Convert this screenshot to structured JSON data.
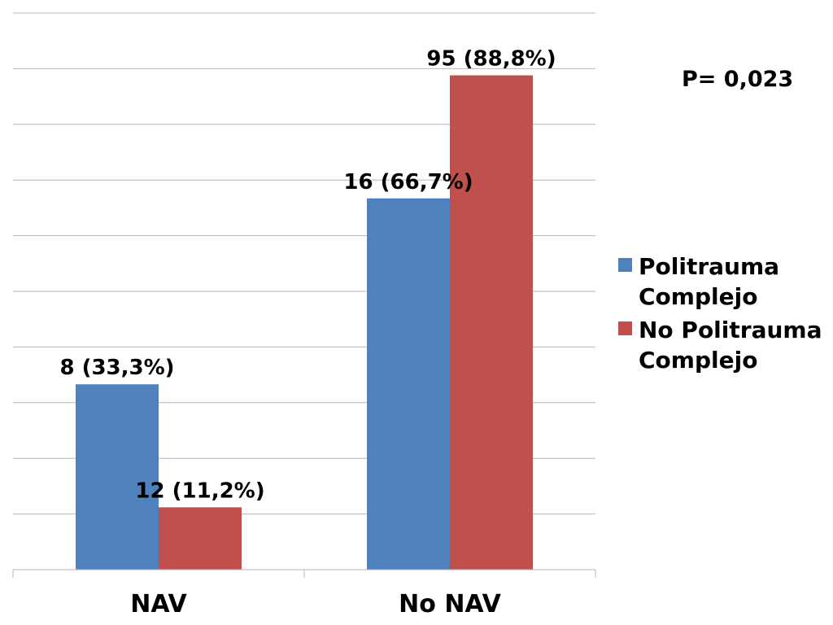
{
  "chart_data": {
    "type": "bar",
    "categories": [
      "NAV",
      "No NAV"
    ],
    "series": [
      {
        "name": "Politrauma Complejo",
        "color": "#4f81bd",
        "values": [
          33.3,
          66.7
        ],
        "labels": [
          "8 (33,3%)",
          "16 (66,7%)"
        ]
      },
      {
        "name": "No Politrauma Complejo",
        "color": "#c0504d",
        "values": [
          11.2,
          88.8
        ],
        "labels": [
          "12 (11,2%)",
          "95 (88,8%)"
        ]
      }
    ],
    "ylim": [
      0,
      100
    ],
    "grid": true,
    "legend": "right",
    "annotation": "P= 0,023"
  }
}
